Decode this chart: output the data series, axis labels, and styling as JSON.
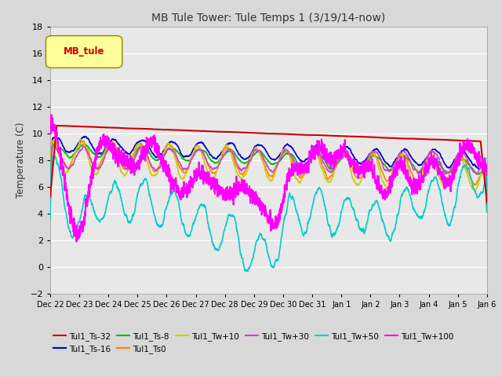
{
  "title": "MB Tule Tower: Tule Temps 1 (3/19/14-now)",
  "ylabel": "Temperature (C)",
  "ylim": [
    -2,
    18
  ],
  "yticks": [
    -2,
    0,
    2,
    4,
    6,
    8,
    10,
    12,
    14,
    16,
    18
  ],
  "bg_color": "#d8d8d8",
  "plot_bg": "#e8e8e8",
  "legend_box_label": "MB_tule",
  "legend_box_color": "#ffff99",
  "series": [
    {
      "name": "Tul1_Ts-32",
      "color": "#cc0000",
      "lw": 1.5,
      "zorder": 5
    },
    {
      "name": "Tul1_Ts-16",
      "color": "#0000cc",
      "lw": 1.2,
      "zorder": 4
    },
    {
      "name": "Tul1_Ts-8",
      "color": "#00bb00",
      "lw": 1.2,
      "zorder": 4
    },
    {
      "name": "Tul1_Ts0",
      "color": "#ff8800",
      "lw": 1.2,
      "zorder": 4
    },
    {
      "name": "Tul1_Tw+10",
      "color": "#cccc00",
      "lw": 1.2,
      "zorder": 4
    },
    {
      "name": "Tul1_Tw+30",
      "color": "#cc44cc",
      "lw": 1.2,
      "zorder": 4
    },
    {
      "name": "Tul1_Tw+50",
      "color": "#00cccc",
      "lw": 1.2,
      "zorder": 4
    },
    {
      "name": "Tul1_Tw+100",
      "color": "#ff00ff",
      "lw": 1.5,
      "zorder": 6
    }
  ],
  "x_start": 0,
  "x_end": 15,
  "n_points": 2000,
  "xtick_labels": [
    "Dec 22",
    "Dec 23",
    "Dec 24",
    "Dec 25",
    "Dec 26",
    "Dec 27",
    "Dec 28",
    "Dec 29",
    "Dec 30",
    "Dec 31",
    "Jan 1",
    "Jan 2",
    "Jan 3",
    "Jan 4",
    "Jan 5",
    "Jan 6"
  ],
  "xtick_positions": [
    0,
    1,
    2,
    3,
    4,
    5,
    6,
    7,
    8,
    9,
    10,
    11,
    12,
    13,
    14,
    15
  ]
}
